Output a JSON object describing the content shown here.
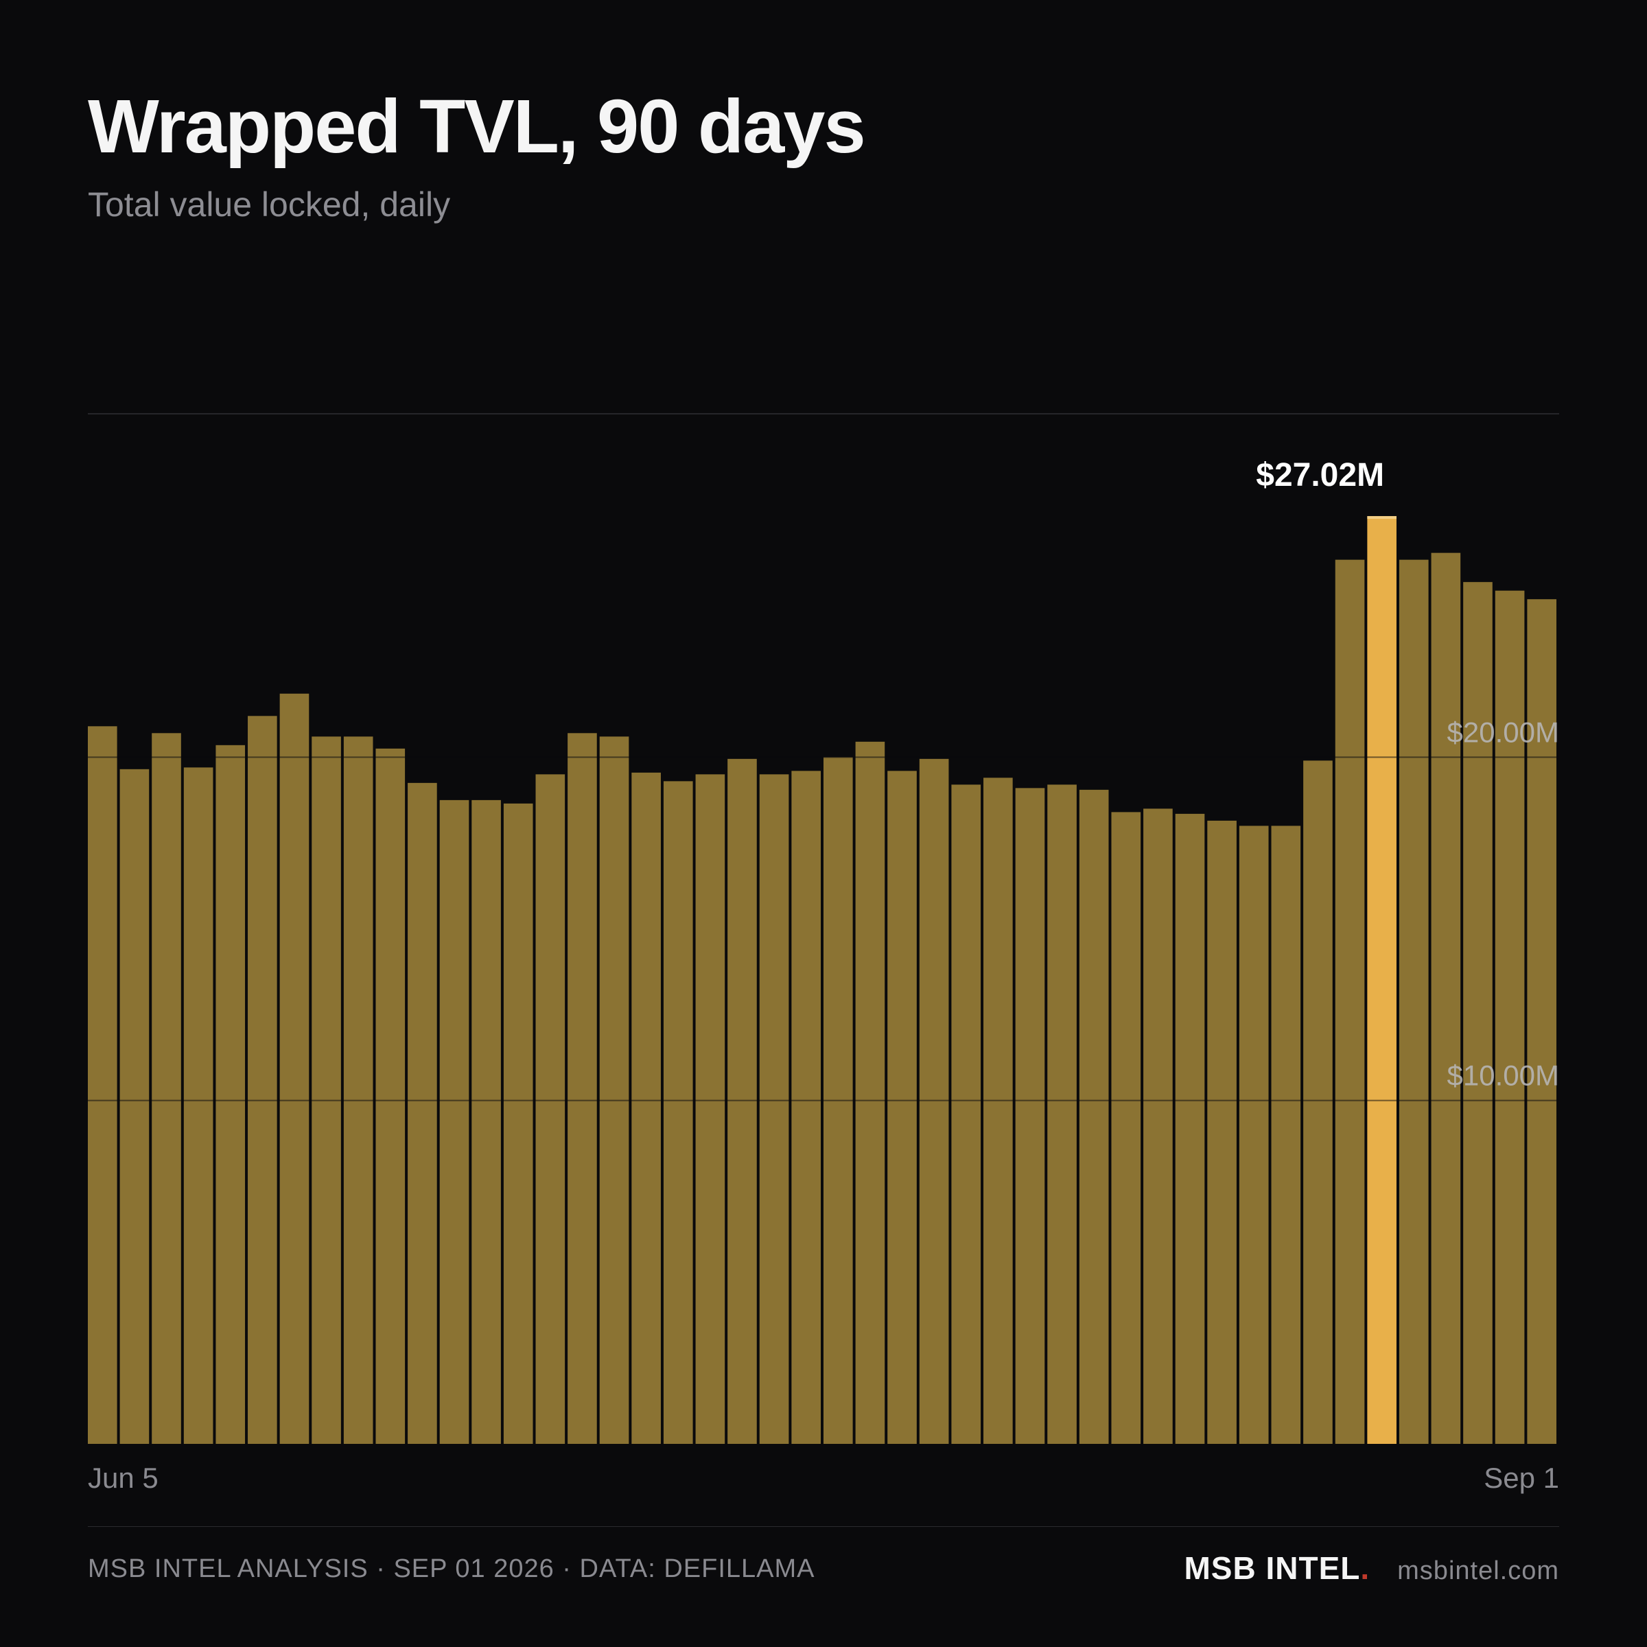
{
  "header": {
    "title": "Wrapped TVL, 90 days",
    "subtitle": "Total value locked, daily"
  },
  "footer": {
    "analysis": "MSB INTEL ANALYSIS · SEP 01 2026 · DATA: DEFILLAMA",
    "brand": "MSB INTEL",
    "brand_dot": ".",
    "site": "msbintel.com"
  },
  "colors": {
    "background": "#0a0a0c",
    "bar": "#8b7333",
    "bar_highlight": "#e8b04a",
    "brand_dot": "#c0392b"
  },
  "chart_data": {
    "type": "bar",
    "title": "Wrapped TVL, 90 days",
    "subtitle": "Total value locked, daily",
    "xlabel": "",
    "ylabel": "",
    "x_tick_labels": [
      "Jun 5",
      "Sep 1"
    ],
    "y_ticks": [
      {
        "value": 10,
        "label": "$10.00M"
      },
      {
        "value": 20,
        "label": "$20.00M"
      }
    ],
    "ylim": [
      0,
      30
    ],
    "grid": true,
    "highlight_index": 40,
    "highlight_label": "$27.02M",
    "unit": "$M",
    "values": [
      20.9,
      19.65,
      20.7,
      19.7,
      20.35,
      21.2,
      21.85,
      20.6,
      20.6,
      20.25,
      19.25,
      18.75,
      18.75,
      18.65,
      19.5,
      20.7,
      20.6,
      19.55,
      19.3,
      19.5,
      19.95,
      19.5,
      19.6,
      20.0,
      20.45,
      19.6,
      19.95,
      19.2,
      19.4,
      19.1,
      19.2,
      19.05,
      18.4,
      18.5,
      18.35,
      18.15,
      18.0,
      18.0,
      19.9,
      25.75,
      27.02,
      25.75,
      25.95,
      25.1,
      24.85,
      24.6
    ]
  }
}
